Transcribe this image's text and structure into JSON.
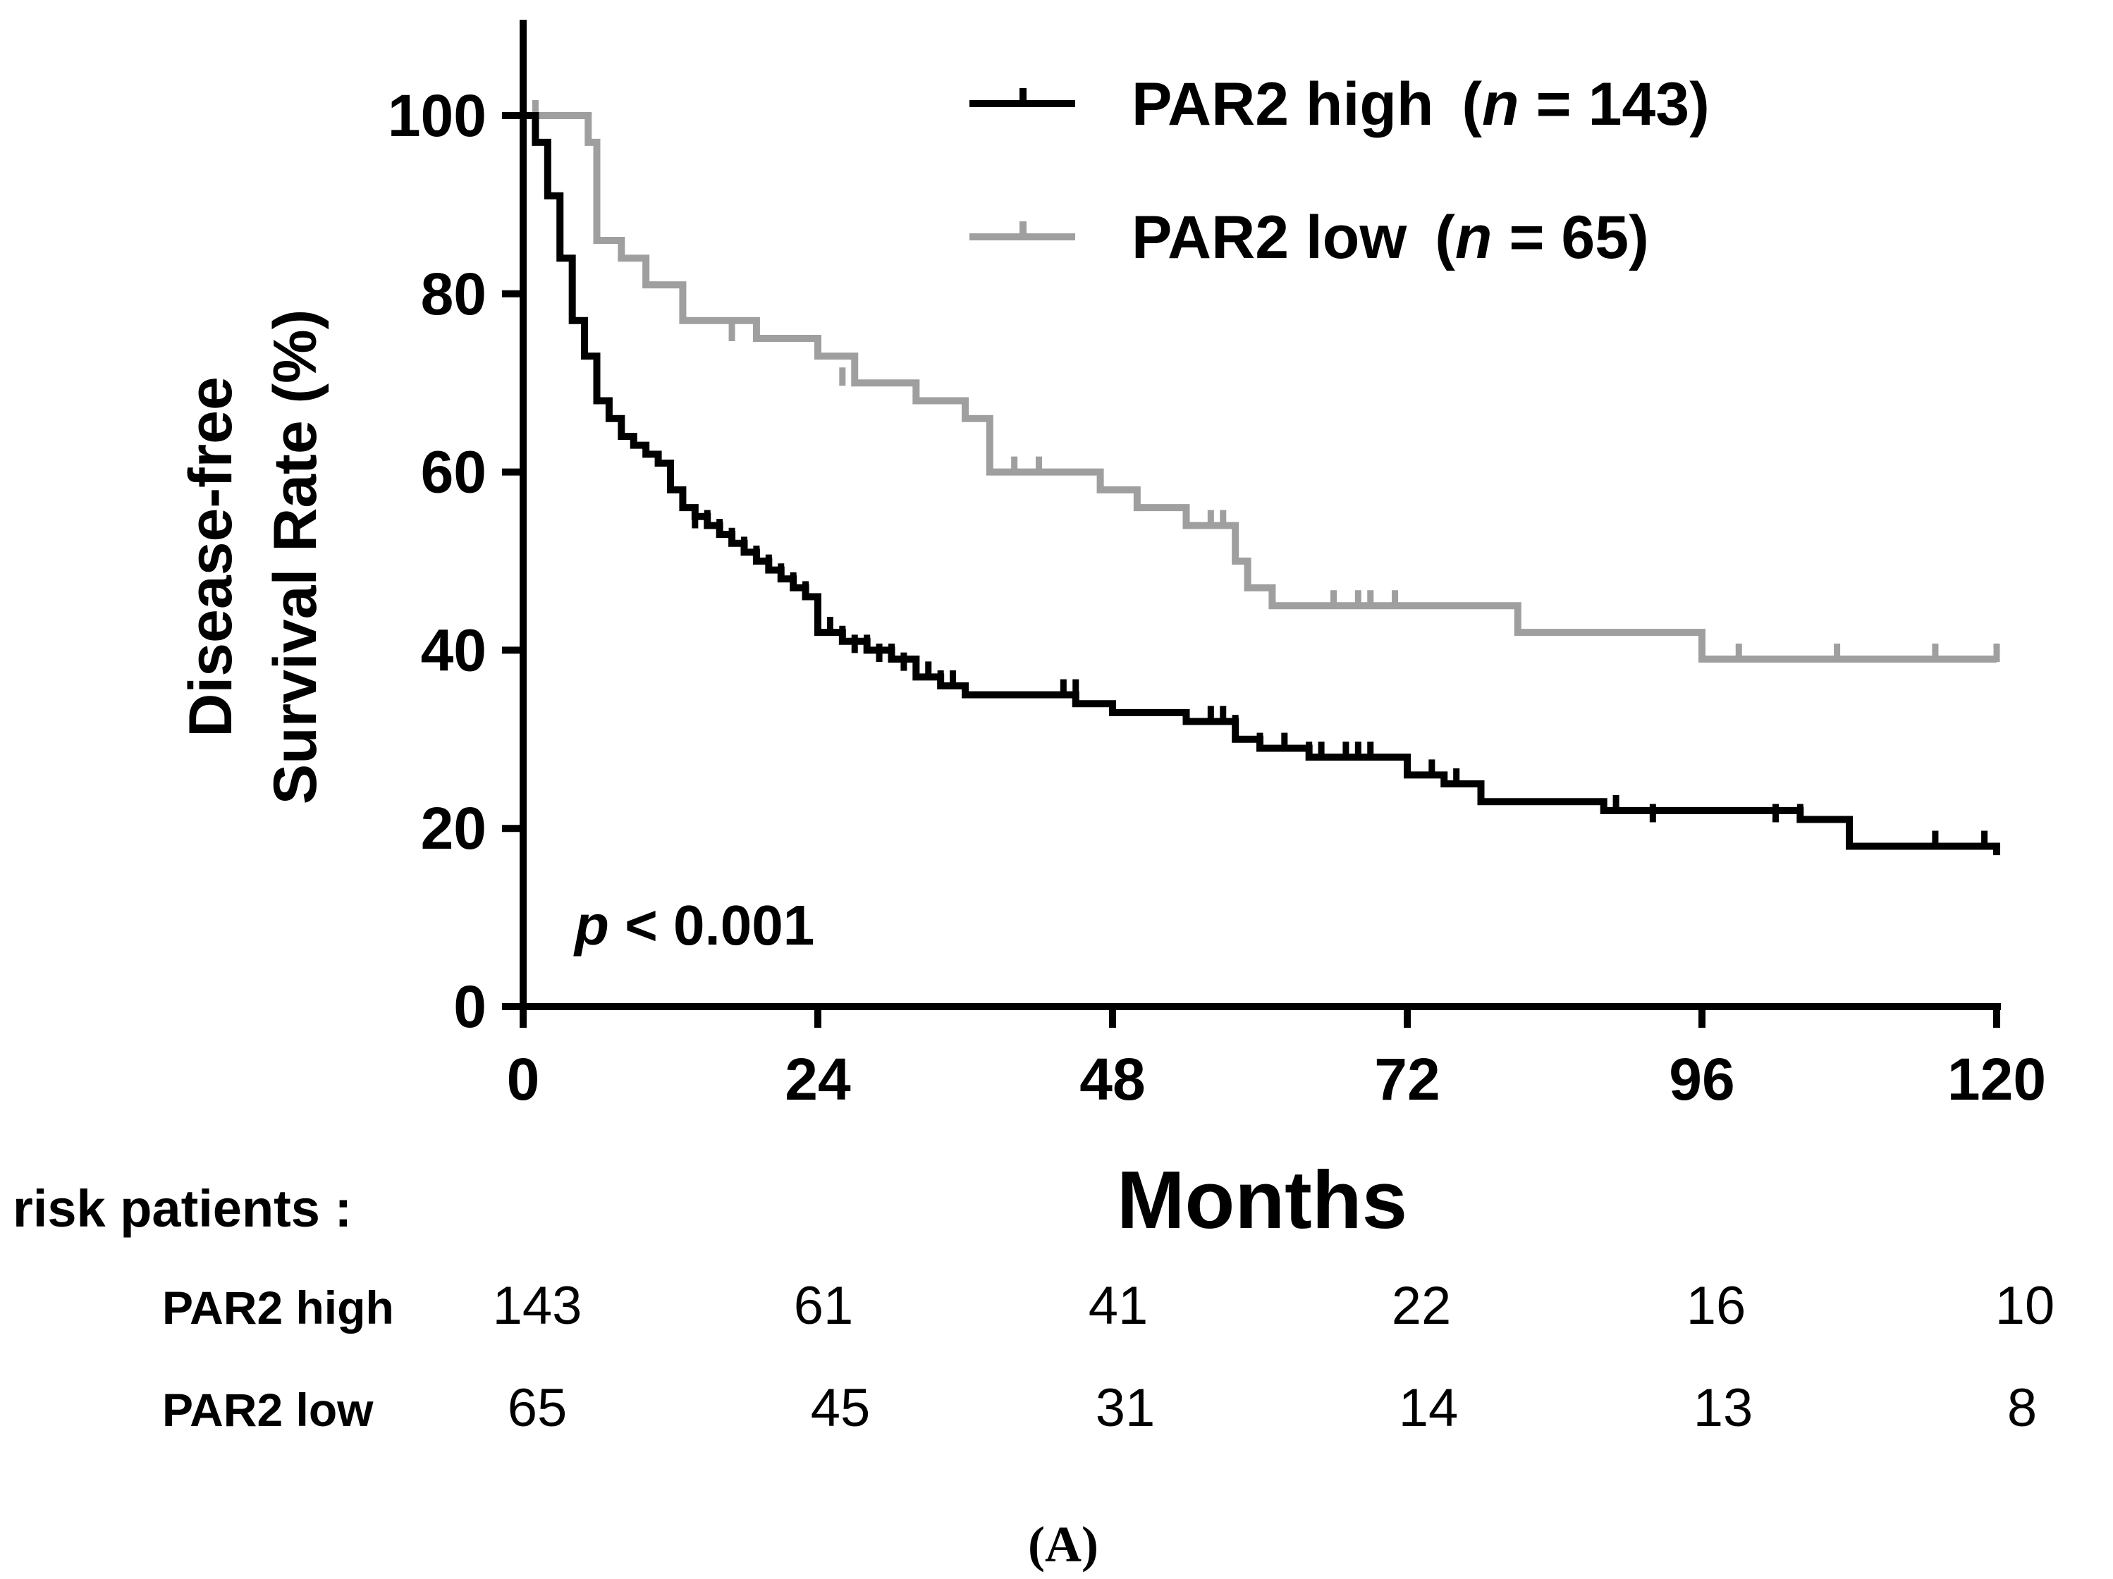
{
  "figure_label": "(A)",
  "chart_data": {
    "type": "line",
    "subtype": "kaplan-meier",
    "title": "",
    "xlabel": "Months",
    "ylabel_line1": "Disease-free",
    "ylabel_line2": "Survival Rate (%)",
    "xlim": [
      0,
      120
    ],
    "ylim": [
      0,
      110
    ],
    "xticks": [
      0,
      24,
      48,
      72,
      96,
      120
    ],
    "yticks": [
      0,
      20,
      40,
      60,
      80,
      100
    ],
    "grid": false,
    "legend_position": "top-right",
    "annotation": {
      "p_symbol": "p",
      "p_text": " < 0.001"
    },
    "series": [
      {
        "name": "PAR2 high",
        "n_label": "n",
        "n_text": " = 143)",
        "color": "#000000",
        "x": [
          0,
          1,
          2,
          3,
          4,
          5,
          6,
          7,
          8,
          9,
          10,
          11,
          12,
          13,
          14,
          15,
          16,
          17,
          18,
          19,
          20,
          21,
          22,
          23,
          24,
          26,
          28,
          30,
          32,
          34,
          36,
          45,
          48,
          54,
          58,
          60,
          64,
          68,
          72,
          75,
          78,
          88,
          104,
          108,
          120
        ],
        "y": [
          100,
          97,
          91,
          84,
          77,
          73,
          68,
          66,
          64,
          63,
          62,
          61,
          58,
          56,
          55,
          54,
          53,
          52,
          51,
          50,
          49,
          48,
          47,
          46,
          42,
          41,
          40,
          39,
          37,
          36,
          35,
          34,
          33,
          32,
          30,
          29,
          28,
          28,
          26,
          25,
          23,
          22,
          21,
          18,
          17
        ],
        "censored": [
          {
            "x": 14,
            "y": 54
          },
          {
            "x": 15,
            "y": 54
          },
          {
            "x": 16,
            "y": 53
          },
          {
            "x": 17,
            "y": 52
          },
          {
            "x": 18,
            "y": 51
          },
          {
            "x": 19,
            "y": 50
          },
          {
            "x": 20,
            "y": 49
          },
          {
            "x": 21,
            "y": 48
          },
          {
            "x": 22,
            "y": 47
          },
          {
            "x": 23,
            "y": 46
          },
          {
            "x": 25,
            "y": 42
          },
          {
            "x": 26,
            "y": 41
          },
          {
            "x": 27,
            "y": 40
          },
          {
            "x": 28,
            "y": 40
          },
          {
            "x": 29,
            "y": 39
          },
          {
            "x": 30,
            "y": 39
          },
          {
            "x": 31,
            "y": 38
          },
          {
            "x": 33,
            "y": 37
          },
          {
            "x": 34,
            "y": 36
          },
          {
            "x": 35,
            "y": 36
          },
          {
            "x": 44,
            "y": 35
          },
          {
            "x": 45,
            "y": 35
          },
          {
            "x": 56,
            "y": 32
          },
          {
            "x": 57,
            "y": 32
          },
          {
            "x": 58,
            "y": 31
          },
          {
            "x": 60,
            "y": 29
          },
          {
            "x": 62,
            "y": 29
          },
          {
            "x": 64,
            "y": 28
          },
          {
            "x": 65,
            "y": 28
          },
          {
            "x": 67,
            "y": 28
          },
          {
            "x": 68,
            "y": 28
          },
          {
            "x": 69,
            "y": 28
          },
          {
            "x": 74,
            "y": 26
          },
          {
            "x": 76,
            "y": 25
          },
          {
            "x": 89,
            "y": 22
          },
          {
            "x": 92,
            "y": 21
          },
          {
            "x": 102,
            "y": 21
          },
          {
            "x": 104,
            "y": 21
          },
          {
            "x": 115,
            "y": 18
          },
          {
            "x": 119,
            "y": 18
          }
        ]
      },
      {
        "name": "PAR2 low",
        "n_label": "n",
        "n_text": " = 65)",
        "color": "#9f9f9f",
        "x": [
          0,
          5,
          5.3,
          6,
          8,
          10,
          13,
          19,
          24,
          27,
          32,
          36,
          38,
          47,
          50,
          54,
          58,
          59,
          61,
          81,
          96,
          120
        ],
        "y": [
          100,
          100,
          97,
          86,
          84,
          81,
          77,
          75,
          73,
          70,
          68,
          66,
          60,
          58,
          56,
          54,
          50,
          47,
          45,
          42,
          39,
          39
        ],
        "censored": [
          {
            "x": 1,
            "y": 100
          },
          {
            "x": 17,
            "y": 75
          },
          {
            "x": 26,
            "y": 70
          },
          {
            "x": 40,
            "y": 60
          },
          {
            "x": 42,
            "y": 60
          },
          {
            "x": 47,
            "y": 58
          },
          {
            "x": 56,
            "y": 54
          },
          {
            "x": 57,
            "y": 54
          },
          {
            "x": 66,
            "y": 45
          },
          {
            "x": 68,
            "y": 45
          },
          {
            "x": 69,
            "y": 45
          },
          {
            "x": 71,
            "y": 45
          },
          {
            "x": 99,
            "y": 39
          },
          {
            "x": 107,
            "y": 39
          },
          {
            "x": 115,
            "y": 39
          },
          {
            "x": 120,
            "y": 39
          }
        ]
      }
    ],
    "risk_table": {
      "title": "risk patients :",
      "rows": [
        {
          "label": "PAR2 high",
          "values": [
            "143",
            "61",
            "41",
            "22",
            "16",
            "10"
          ]
        },
        {
          "label": "PAR2 low",
          "values": [
            "65",
            "45",
            "31",
            "14",
            "13",
            "8"
          ]
        }
      ]
    }
  }
}
